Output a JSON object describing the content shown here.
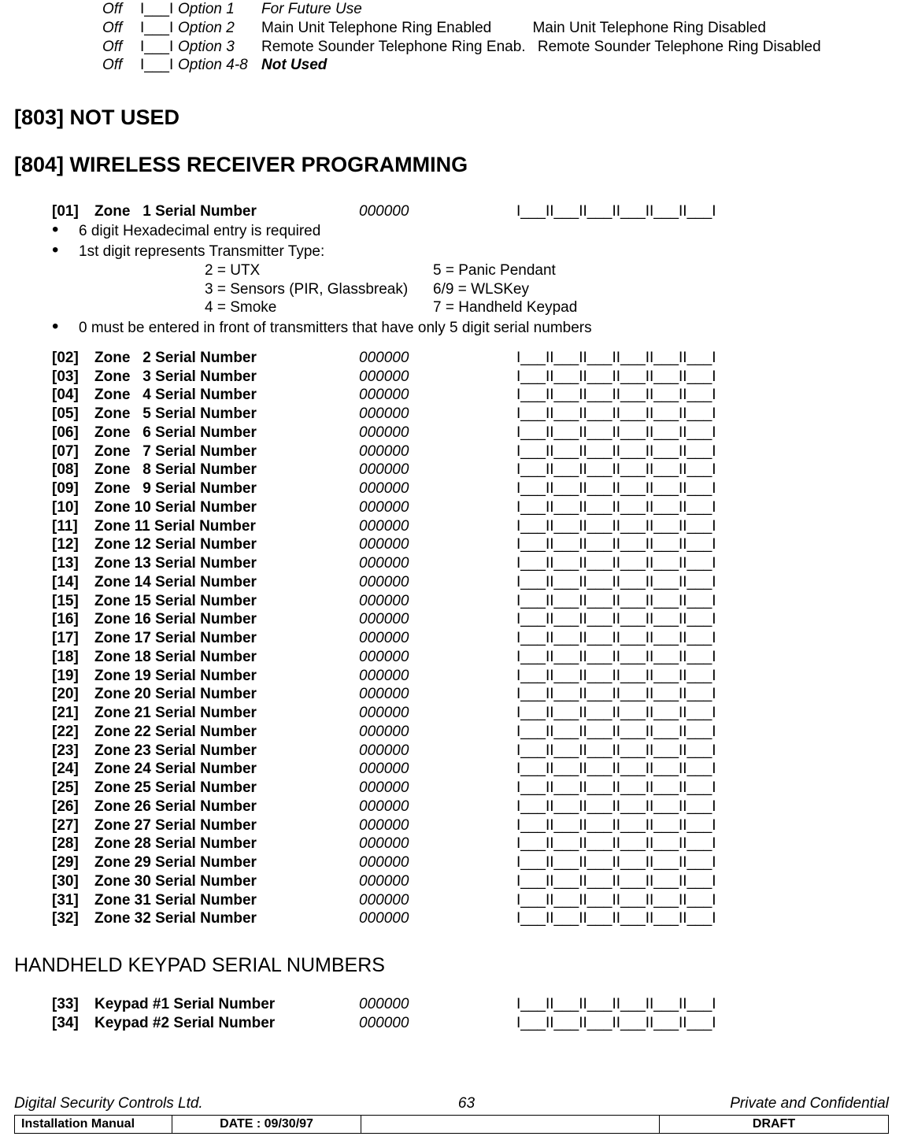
{
  "options": [
    {
      "off": "Off",
      "slot": "I___I",
      "opt": "Option 1",
      "desc": "For Future Use",
      "italic_desc": true,
      "right": ""
    },
    {
      "off": "Off",
      "slot": "I___I",
      "opt": "Option 2",
      "desc": "Main Unit Telephone Ring Enabled",
      "italic_desc": false,
      "right": "Main Unit Telephone Ring Disabled"
    },
    {
      "off": "Off",
      "slot": "I___I",
      "opt": "Option 3",
      "desc": "Remote Sounder Telephone Ring Enab.",
      "italic_desc": false,
      "right": "Remote Sounder Telephone Ring Disabled"
    },
    {
      "off": "Off",
      "slot": "I___I",
      "opt": "Option 4-8",
      "desc": "Not Used",
      "italic_desc": false,
      "bold_desc": true,
      "right": ""
    }
  ],
  "section_803": "[803] NOT USED",
  "section_804": "[804] WIRELESS RECEIVER PROGRAMMING",
  "zone01": {
    "idx": "[01]",
    "label": "Zone   1 Serial Number",
    "val": "000000",
    "boxes": "I___II___II___II___II___II___I"
  },
  "bullets": {
    "b1": "6 digit Hexadecimal entry is required",
    "b2": "1st digit represents Transmitter Type:",
    "b3": "0 must be entered in front of transmitters that have only 5 digit serial numbers"
  },
  "tx_types": [
    {
      "l": "2 = UTX",
      "r": "5 = Panic Pendant"
    },
    {
      "l": "3 = Sensors (PIR, Glassbreak)",
      "r": "6/9 = WLSKey"
    },
    {
      "l": "4 = Smoke",
      "r": "7 = Handheld Keypad"
    }
  ],
  "zones": [
    {
      "idx": "[02]",
      "label": "Zone   2 Serial Number",
      "val": "000000",
      "boxes": "I___II___II___II___II___II___I"
    },
    {
      "idx": "[03]",
      "label": "Zone   3 Serial Number",
      "val": "000000",
      "boxes": "I___II___II___II___II___II___I"
    },
    {
      "idx": "[04]",
      "label": "Zone   4 Serial Number",
      "val": "000000",
      "boxes": "I___II___II___II___II___II___I"
    },
    {
      "idx": "[05]",
      "label": "Zone   5 Serial Number",
      "val": "000000",
      "boxes": "I___II___II___II___II___II___I"
    },
    {
      "idx": "[06]",
      "label": "Zone   6 Serial Number",
      "val": "000000",
      "boxes": "I___II___II___II___II___II___I"
    },
    {
      "idx": "[07]",
      "label": "Zone   7 Serial Number",
      "val": "000000",
      "boxes": "I___II___II___II___II___II___I"
    },
    {
      "idx": "[08]",
      "label": "Zone   8 Serial Number",
      "val": "000000",
      "boxes": "I___II___II___II___II___II___I"
    },
    {
      "idx": "[09]",
      "label": "Zone   9 Serial Number",
      "val": "000000",
      "boxes": "I___II___II___II___II___II___I"
    },
    {
      "idx": "[10]",
      "label": "Zone 10 Serial Number",
      "val": "000000",
      "boxes": "I___II___II___II___II___II___I"
    },
    {
      "idx": "[11]",
      "label": "Zone 11 Serial Number",
      "val": "000000",
      "boxes": "I___II___II___II___II___II___I"
    },
    {
      "idx": "[12]",
      "label": "Zone 12 Serial Number",
      "val": "000000",
      "boxes": "I___II___II___II___II___II___I"
    },
    {
      "idx": "[13]",
      "label": "Zone 13 Serial Number",
      "val": "000000",
      "boxes": "I___II___II___II___II___II___I"
    },
    {
      "idx": "[14]",
      "label": "Zone 14 Serial Number",
      "val": "000000",
      "boxes": "I___II___II___II___II___II___I"
    },
    {
      "idx": "[15]",
      "label": "Zone 15 Serial Number",
      "val": "000000",
      "boxes": "I___II___II___II___II___II___I"
    },
    {
      "idx": "[16]",
      "label": "Zone 16 Serial Number",
      "val": "000000",
      "boxes": "I___II___II___II___II___II___I"
    },
    {
      "idx": "[17]",
      "label": "Zone 17 Serial Number",
      "val": "000000",
      "boxes": "I___II___II___II___II___II___I"
    },
    {
      "idx": "[18]",
      "label": "Zone 18 Serial Number",
      "val": "000000",
      "boxes": "I___II___II___II___II___II___I"
    },
    {
      "idx": "[19]",
      "label": "Zone 19 Serial Number",
      "val": "000000",
      "boxes": "I___II___II___II___II___II___I"
    },
    {
      "idx": "[20]",
      "label": "Zone 20 Serial Number",
      "val": "000000",
      "boxes": "I___II___II___II___II___II___I"
    },
    {
      "idx": "[21]",
      "label": "Zone 21 Serial Number",
      "val": "000000",
      "boxes": "I___II___II___II___II___II___I"
    },
    {
      "idx": "[22]",
      "label": "Zone 22 Serial Number",
      "val": "000000",
      "boxes": "I___II___II___II___II___II___I"
    },
    {
      "idx": "[23]",
      "label": "Zone 23 Serial Number",
      "val": "000000",
      "boxes": "I___II___II___II___II___II___I"
    },
    {
      "idx": "[24]",
      "label": "Zone 24 Serial Number",
      "val": "000000",
      "boxes": "I___II___II___II___II___II___I"
    },
    {
      "idx": "[25]",
      "label": "Zone 25 Serial Number",
      "val": "000000",
      "boxes": "I___II___II___II___II___II___I"
    },
    {
      "idx": "[26]",
      "label": "Zone 26 Serial Number",
      "val": "000000",
      "boxes": "I___II___II___II___II___II___I"
    },
    {
      "idx": "[27]",
      "label": "Zone 27 Serial Number",
      "val": "000000",
      "boxes": "I___II___II___II___II___II___I"
    },
    {
      "idx": "[28]",
      "label": "Zone 28 Serial Number",
      "val": "000000",
      "boxes": "I___II___II___II___II___II___I"
    },
    {
      "idx": "[29]",
      "label": "Zone 29 Serial Number",
      "val": "000000",
      "boxes": "I___II___II___II___II___II___I"
    },
    {
      "idx": "[30]",
      "label": "Zone 30 Serial Number",
      "val": "000000",
      "boxes": "I___II___II___II___II___II___I"
    },
    {
      "idx": "[31]",
      "label": "Zone 31 Serial Number",
      "val": "000000",
      "boxes": "I___II___II___II___II___II___I"
    },
    {
      "idx": "[32]",
      "label": "Zone 32 Serial Number",
      "val": "000000",
      "boxes": "I___II___II___II___II___II___I"
    }
  ],
  "section_hk": "HANDHELD KEYPAD SERIAL NUMBERS",
  "keypads": [
    {
      "idx": "[33]",
      "label": "Keypad #1 Serial Number",
      "val": "000000",
      "boxes": "I___II___II___II___II___II___I"
    },
    {
      "idx": "[34]",
      "label": "Keypad #2 Serial Number",
      "val": "000000",
      "boxes": "I___II___II___II___II___II___I"
    }
  ],
  "footer": {
    "company": "Digital Security Controls Ltd.",
    "page": "63",
    "conf": "Private and Confidential",
    "doc": "Installation Manual",
    "date": "DATE :  09/30/97",
    "draft": "DRAFT"
  }
}
